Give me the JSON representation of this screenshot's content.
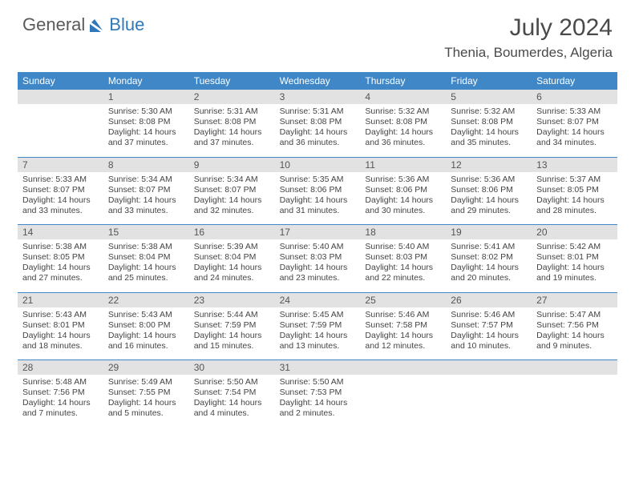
{
  "logo": {
    "text1": "General",
    "text2": "Blue",
    "mark_color": "#2f78bb"
  },
  "title": "July 2024",
  "location": "Thenia, Boumerdes, Algeria",
  "colors": {
    "header_bar": "#3f87c7",
    "daynum_bg": "#e2e2e2",
    "week_divider": "#3f87c7",
    "text": "#444444"
  },
  "days_of_week": [
    "Sunday",
    "Monday",
    "Tuesday",
    "Wednesday",
    "Thursday",
    "Friday",
    "Saturday"
  ],
  "weeks": [
    [
      {
        "n": "",
        "lines": []
      },
      {
        "n": "1",
        "lines": [
          "Sunrise: 5:30 AM",
          "Sunset: 8:08 PM",
          "Daylight: 14 hours",
          "and 37 minutes."
        ]
      },
      {
        "n": "2",
        "lines": [
          "Sunrise: 5:31 AM",
          "Sunset: 8:08 PM",
          "Daylight: 14 hours",
          "and 37 minutes."
        ]
      },
      {
        "n": "3",
        "lines": [
          "Sunrise: 5:31 AM",
          "Sunset: 8:08 PM",
          "Daylight: 14 hours",
          "and 36 minutes."
        ]
      },
      {
        "n": "4",
        "lines": [
          "Sunrise: 5:32 AM",
          "Sunset: 8:08 PM",
          "Daylight: 14 hours",
          "and 36 minutes."
        ]
      },
      {
        "n": "5",
        "lines": [
          "Sunrise: 5:32 AM",
          "Sunset: 8:08 PM",
          "Daylight: 14 hours",
          "and 35 minutes."
        ]
      },
      {
        "n": "6",
        "lines": [
          "Sunrise: 5:33 AM",
          "Sunset: 8:07 PM",
          "Daylight: 14 hours",
          "and 34 minutes."
        ]
      }
    ],
    [
      {
        "n": "7",
        "lines": [
          "Sunrise: 5:33 AM",
          "Sunset: 8:07 PM",
          "Daylight: 14 hours",
          "and 33 minutes."
        ]
      },
      {
        "n": "8",
        "lines": [
          "Sunrise: 5:34 AM",
          "Sunset: 8:07 PM",
          "Daylight: 14 hours",
          "and 33 minutes."
        ]
      },
      {
        "n": "9",
        "lines": [
          "Sunrise: 5:34 AM",
          "Sunset: 8:07 PM",
          "Daylight: 14 hours",
          "and 32 minutes."
        ]
      },
      {
        "n": "10",
        "lines": [
          "Sunrise: 5:35 AM",
          "Sunset: 8:06 PM",
          "Daylight: 14 hours",
          "and 31 minutes."
        ]
      },
      {
        "n": "11",
        "lines": [
          "Sunrise: 5:36 AM",
          "Sunset: 8:06 PM",
          "Daylight: 14 hours",
          "and 30 minutes."
        ]
      },
      {
        "n": "12",
        "lines": [
          "Sunrise: 5:36 AM",
          "Sunset: 8:06 PM",
          "Daylight: 14 hours",
          "and 29 minutes."
        ]
      },
      {
        "n": "13",
        "lines": [
          "Sunrise: 5:37 AM",
          "Sunset: 8:05 PM",
          "Daylight: 14 hours",
          "and 28 minutes."
        ]
      }
    ],
    [
      {
        "n": "14",
        "lines": [
          "Sunrise: 5:38 AM",
          "Sunset: 8:05 PM",
          "Daylight: 14 hours",
          "and 27 minutes."
        ]
      },
      {
        "n": "15",
        "lines": [
          "Sunrise: 5:38 AM",
          "Sunset: 8:04 PM",
          "Daylight: 14 hours",
          "and 25 minutes."
        ]
      },
      {
        "n": "16",
        "lines": [
          "Sunrise: 5:39 AM",
          "Sunset: 8:04 PM",
          "Daylight: 14 hours",
          "and 24 minutes."
        ]
      },
      {
        "n": "17",
        "lines": [
          "Sunrise: 5:40 AM",
          "Sunset: 8:03 PM",
          "Daylight: 14 hours",
          "and 23 minutes."
        ]
      },
      {
        "n": "18",
        "lines": [
          "Sunrise: 5:40 AM",
          "Sunset: 8:03 PM",
          "Daylight: 14 hours",
          "and 22 minutes."
        ]
      },
      {
        "n": "19",
        "lines": [
          "Sunrise: 5:41 AM",
          "Sunset: 8:02 PM",
          "Daylight: 14 hours",
          "and 20 minutes."
        ]
      },
      {
        "n": "20",
        "lines": [
          "Sunrise: 5:42 AM",
          "Sunset: 8:01 PM",
          "Daylight: 14 hours",
          "and 19 minutes."
        ]
      }
    ],
    [
      {
        "n": "21",
        "lines": [
          "Sunrise: 5:43 AM",
          "Sunset: 8:01 PM",
          "Daylight: 14 hours",
          "and 18 minutes."
        ]
      },
      {
        "n": "22",
        "lines": [
          "Sunrise: 5:43 AM",
          "Sunset: 8:00 PM",
          "Daylight: 14 hours",
          "and 16 minutes."
        ]
      },
      {
        "n": "23",
        "lines": [
          "Sunrise: 5:44 AM",
          "Sunset: 7:59 PM",
          "Daylight: 14 hours",
          "and 15 minutes."
        ]
      },
      {
        "n": "24",
        "lines": [
          "Sunrise: 5:45 AM",
          "Sunset: 7:59 PM",
          "Daylight: 14 hours",
          "and 13 minutes."
        ]
      },
      {
        "n": "25",
        "lines": [
          "Sunrise: 5:46 AM",
          "Sunset: 7:58 PM",
          "Daylight: 14 hours",
          "and 12 minutes."
        ]
      },
      {
        "n": "26",
        "lines": [
          "Sunrise: 5:46 AM",
          "Sunset: 7:57 PM",
          "Daylight: 14 hours",
          "and 10 minutes."
        ]
      },
      {
        "n": "27",
        "lines": [
          "Sunrise: 5:47 AM",
          "Sunset: 7:56 PM",
          "Daylight: 14 hours",
          "and 9 minutes."
        ]
      }
    ],
    [
      {
        "n": "28",
        "lines": [
          "Sunrise: 5:48 AM",
          "Sunset: 7:56 PM",
          "Daylight: 14 hours",
          "and 7 minutes."
        ]
      },
      {
        "n": "29",
        "lines": [
          "Sunrise: 5:49 AM",
          "Sunset: 7:55 PM",
          "Daylight: 14 hours",
          "and 5 minutes."
        ]
      },
      {
        "n": "30",
        "lines": [
          "Sunrise: 5:50 AM",
          "Sunset: 7:54 PM",
          "Daylight: 14 hours",
          "and 4 minutes."
        ]
      },
      {
        "n": "31",
        "lines": [
          "Sunrise: 5:50 AM",
          "Sunset: 7:53 PM",
          "Daylight: 14 hours",
          "and 2 minutes."
        ]
      },
      {
        "n": "",
        "lines": []
      },
      {
        "n": "",
        "lines": []
      },
      {
        "n": "",
        "lines": []
      }
    ]
  ]
}
